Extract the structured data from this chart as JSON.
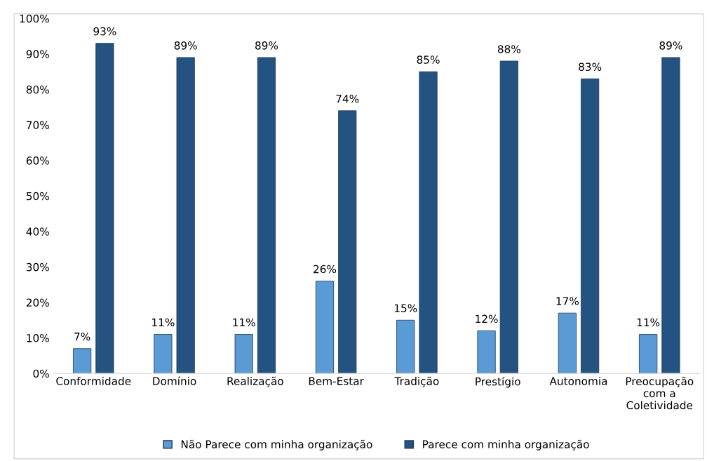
{
  "chart_data": {
    "type": "bar",
    "categories": [
      "Conformidade",
      "Domínio",
      "Realização",
      "Bem-Estar",
      "Tradição",
      "Prestígio",
      "Autonomia",
      "Preocupação\ncom a\nColetividade"
    ],
    "series": [
      {
        "name": "Não Parece com minha organização",
        "color": "#5b9bd5",
        "values": [
          7,
          11,
          11,
          26,
          15,
          12,
          17,
          11
        ],
        "value_labels": [
          "7%",
          "11%",
          "11%",
          "26%",
          "15%",
          "12%",
          "17%",
          "11%"
        ]
      },
      {
        "name": "Parece com minha organização",
        "color": "#255381",
        "values": [
          93,
          89,
          89,
          74,
          85,
          88,
          83,
          89
        ],
        "value_labels": [
          "93%",
          "89%",
          "89%",
          "74%",
          "85%",
          "88%",
          "83%",
          "89%"
        ]
      }
    ],
    "ylim": [
      0,
      100
    ],
    "yticks": [
      {
        "value": 0,
        "label": "0%"
      },
      {
        "value": 10,
        "label": "10%"
      },
      {
        "value": 20,
        "label": "20%"
      },
      {
        "value": 30,
        "label": "30%"
      },
      {
        "value": 40,
        "label": "40%"
      },
      {
        "value": 50,
        "label": "50%"
      },
      {
        "value": 60,
        "label": "60%"
      },
      {
        "value": 70,
        "label": "70%"
      },
      {
        "value": 80,
        "label": "80%"
      },
      {
        "value": 90,
        "label": "90%"
      },
      {
        "value": 100,
        "label": "100%"
      }
    ],
    "grid": false,
    "legend": "bottom"
  }
}
